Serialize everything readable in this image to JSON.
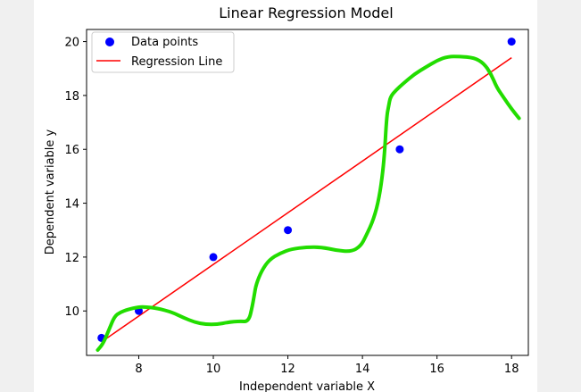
{
  "chart_data": {
    "type": "scatter",
    "title": "Linear Regression Model",
    "xlabel": "Independent variable X",
    "ylabel": "Dependent variable y",
    "xlim": [
      6.6,
      18.45
    ],
    "ylim": [
      8.35,
      20.45
    ],
    "xticks": [
      8,
      10,
      12,
      14,
      16,
      18
    ],
    "yticks": [
      10,
      12,
      14,
      16,
      18,
      20
    ],
    "grid": false,
    "legend_position": "top-left",
    "series": [
      {
        "name": "Data points",
        "kind": "scatter",
        "color": "#0000ff",
        "x": [
          7,
          8,
          10,
          12,
          15,
          18
        ],
        "y": [
          9,
          10,
          12,
          13,
          16,
          20
        ]
      },
      {
        "name": "Regression Line",
        "kind": "line",
        "color": "#ff0000",
        "x": [
          7,
          18
        ],
        "y": [
          8.85,
          19.4
        ]
      }
    ],
    "annotation_curve": {
      "color": "#22dd00",
      "x": [
        6.9,
        7.05,
        7.2,
        7.35,
        7.5,
        7.7,
        8.0,
        8.2,
        8.5,
        8.9,
        9.2,
        9.5,
        9.8,
        10.1,
        10.4,
        10.7,
        10.95,
        11.05,
        11.1,
        11.15,
        11.3,
        11.5,
        11.8,
        12.1,
        12.5,
        12.9,
        13.3,
        13.7,
        13.95,
        14.1,
        14.3,
        14.45,
        14.55,
        14.6,
        14.65,
        14.7,
        14.75,
        14.9,
        15.1,
        15.4,
        15.7,
        16.0,
        16.3,
        16.6,
        17.0,
        17.25,
        17.45,
        17.6,
        17.8,
        18.0,
        18.2
      ],
      "y": [
        8.55,
        8.8,
        9.3,
        9.8,
        9.95,
        10.05,
        10.15,
        10.15,
        10.1,
        9.95,
        9.75,
        9.58,
        9.5,
        9.5,
        9.58,
        9.62,
        9.6,
        10.2,
        10.6,
        11.0,
        11.5,
        11.9,
        12.15,
        12.3,
        12.37,
        12.37,
        12.25,
        12.2,
        12.4,
        12.8,
        13.4,
        14.2,
        15.2,
        16.0,
        17.2,
        17.6,
        17.95,
        18.2,
        18.45,
        18.8,
        19.05,
        19.3,
        19.45,
        19.45,
        19.4,
        19.2,
        18.8,
        18.3,
        17.9,
        17.5,
        17.15
      ]
    }
  }
}
